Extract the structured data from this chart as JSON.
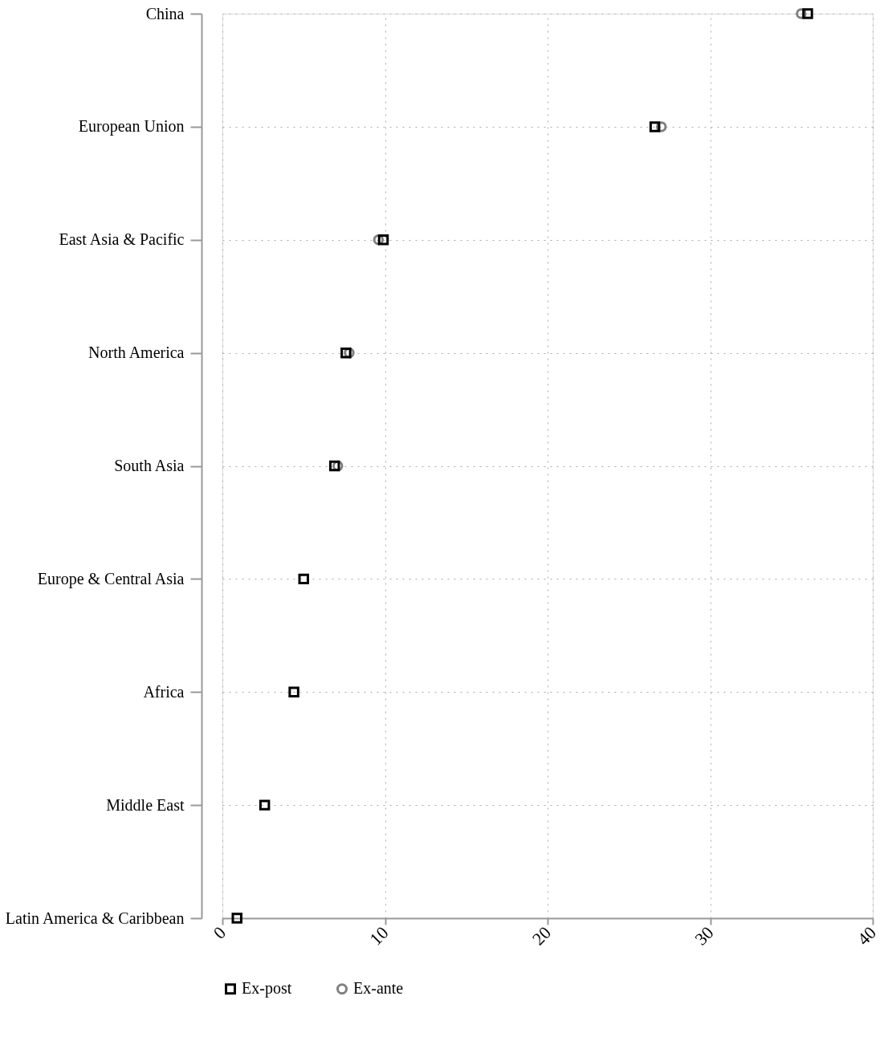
{
  "chart_data": {
    "type": "scatter",
    "orientation": "horizontal",
    "categories": [
      "China",
      "European Union",
      "East Asia & Pacific",
      "North America",
      "South Asia",
      "Europe & Central Asia",
      "Africa",
      "Middle East",
      "Latin America & Caribbean"
    ],
    "series": [
      {
        "name": "Ex-post",
        "color": "#000000",
        "marker": "square",
        "values": [
          36.0,
          26.6,
          9.9,
          7.6,
          6.9,
          5.0,
          4.4,
          2.6,
          0.9
        ]
      },
      {
        "name": "Ex-ante",
        "color": "#808080",
        "marker": "circle",
        "values": [
          35.6,
          27.0,
          9.6,
          7.8,
          7.1,
          null,
          null,
          null,
          null
        ]
      }
    ],
    "xlim": [
      0,
      40
    ],
    "xticks": [
      0,
      10,
      20,
      30,
      40
    ],
    "grid": true,
    "legend": "bottom"
  }
}
